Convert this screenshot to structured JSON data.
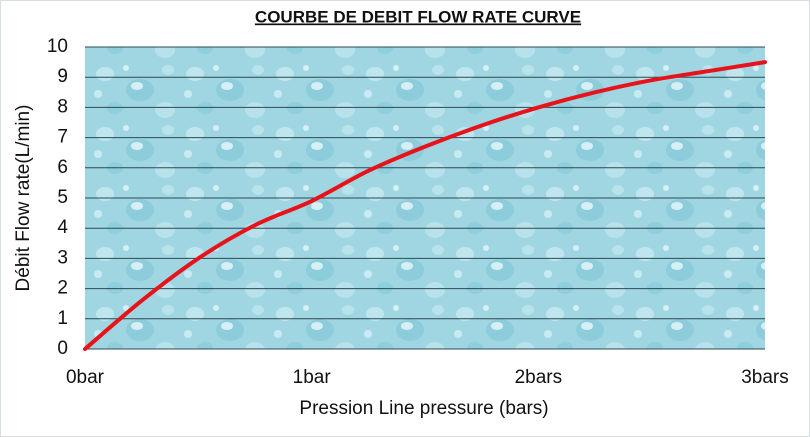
{
  "chart_data": {
    "type": "line",
    "title": "COURBE DE DEBIT FLOW RATE CURVE",
    "x_label": "Pression Line pressure (bars)",
    "y_label": "Débit Flow rate(L/min)",
    "x": [
      0,
      0.25,
      0.5,
      0.75,
      1,
      1.25,
      1.5,
      1.75,
      2,
      2.25,
      2.5,
      2.75,
      3
    ],
    "series": [
      {
        "color": "#e8121a",
        "values": [
          0,
          1.6,
          3.0,
          4.1,
          4.9,
          5.9,
          6.7,
          7.4,
          8.0,
          8.5,
          8.9,
          9.2,
          9.5
        ]
      }
    ],
    "xlim": [
      0,
      3
    ],
    "xticks": [
      {
        "value": 0,
        "label": "0bar"
      },
      {
        "value": 1,
        "label": "1bar"
      },
      {
        "value": 2,
        "label": "2bars"
      },
      {
        "value": 3,
        "label": "3bars"
      }
    ],
    "ylim": [
      0,
      10
    ],
    "yticks": [
      0,
      1,
      2,
      3,
      4,
      5,
      6,
      7,
      8,
      9,
      10
    ],
    "grid": true
  }
}
